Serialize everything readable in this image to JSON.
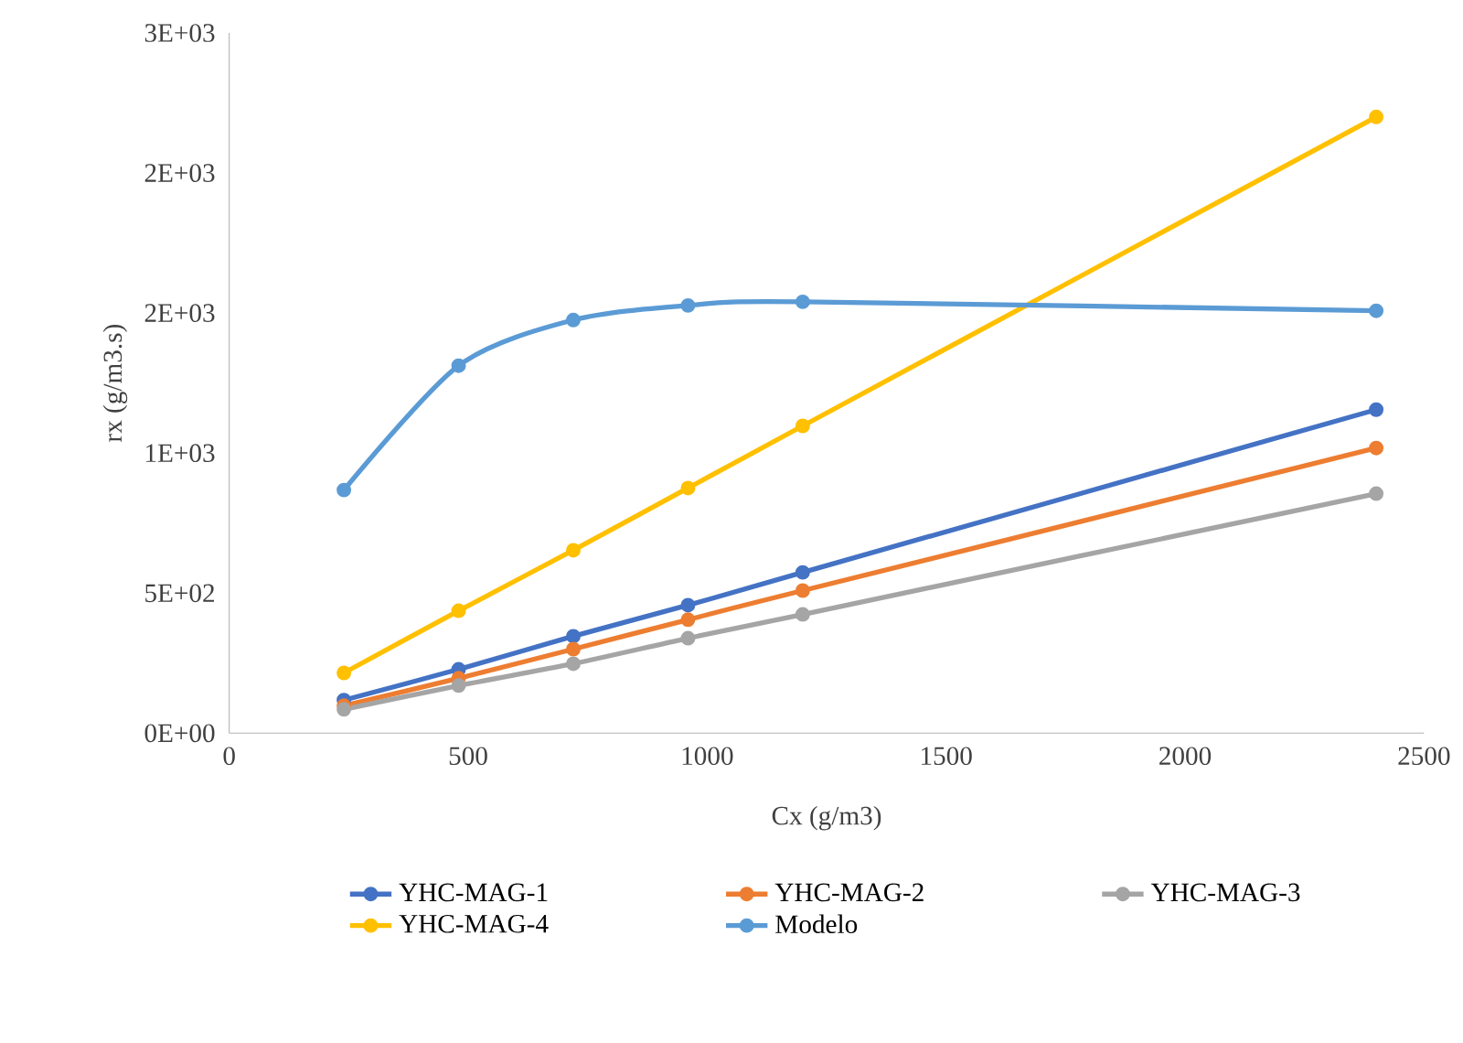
{
  "chart_data": {
    "type": "line",
    "xlabel": "Cx  (g/m3)",
    "ylabel": "rx  (g/m3.s)",
    "x": [
      240,
      480,
      720,
      960,
      1200,
      2400
    ],
    "series": [
      {
        "name": "YHC-MAG-1",
        "color": "#4472c4",
        "values": [
          118,
          228,
          346,
          457,
          574,
          1155
        ]
      },
      {
        "name": "YHC-MAG-2",
        "color": "#ed7d31",
        "values": [
          98,
          196,
          300,
          405,
          509,
          1018
        ]
      },
      {
        "name": "YHC-MAG-3",
        "color": "#a5a5a5",
        "values": [
          85,
          170,
          248,
          339,
          424,
          855
        ]
      },
      {
        "name": "YHC-MAG-4",
        "color": "#ffc000",
        "values": [
          215,
          437,
          653,
          875,
          1097,
          2200
        ]
      },
      {
        "name": "Modelo",
        "color": "#5b9bd5",
        "values": [
          868,
          1312,
          1475,
          1527,
          1540,
          1508
        ]
      }
    ],
    "xlim": [
      0,
      2500
    ],
    "xticks": [
      0,
      500,
      1000,
      1500,
      2000,
      2500
    ],
    "ylim": [
      0,
      2500
    ],
    "yticks": [
      {
        "value": 0,
        "label": "0E+00"
      },
      {
        "value": 500,
        "label": "5E+02"
      },
      {
        "value": 1000,
        "label": "1E+03"
      },
      {
        "value": 1500,
        "label": "2E+03"
      },
      {
        "value": 2000,
        "label": "2E+03"
      },
      {
        "value": 2500,
        "label": "3E+03"
      }
    ],
    "grid": false,
    "legend": "bottom",
    "marker": "circle",
    "line_style": "solid"
  }
}
